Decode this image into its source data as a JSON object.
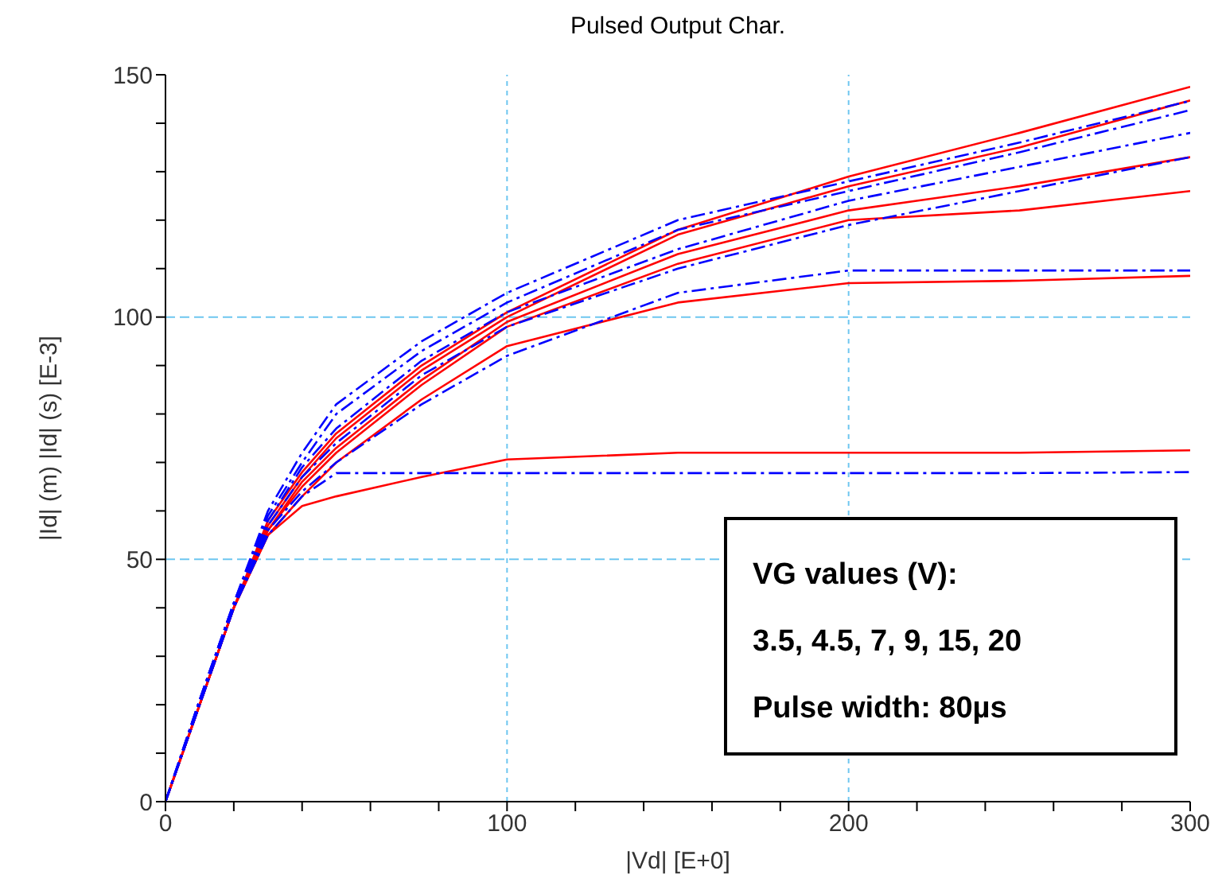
{
  "chart_data": {
    "type": "line",
    "title": "Pulsed Output Char.",
    "xlabel": "|Vd|  [E+0]",
    "ylabel": "|Id| (m)  |Id| (s)  [E-3]",
    "x": [
      0,
      10,
      20,
      30,
      40,
      50,
      75,
      100,
      150,
      200,
      250,
      300
    ],
    "series": [
      {
        "color": "#ff0000",
        "line_style": "solid",
        "values": [
          0,
          20,
          40,
          58,
          68,
          76,
          90,
          101,
          118,
          129,
          138,
          147.5
        ]
      },
      {
        "color": "#ff0000",
        "line_style": "solid",
        "values": [
          0,
          20,
          40,
          57,
          67,
          75,
          89,
          100,
          117,
          127,
          135,
          144.7
        ]
      },
      {
        "color": "#ff0000",
        "line_style": "solid",
        "values": [
          0,
          20,
          40,
          56,
          66,
          73,
          87,
          99,
          113,
          122,
          127,
          133
        ]
      },
      {
        "color": "#ff0000",
        "line_style": "solid",
        "values": [
          0,
          20,
          40,
          56,
          65,
          72,
          86,
          98,
          111,
          120,
          122,
          126
        ]
      },
      {
        "color": "#ff0000",
        "line_style": "solid",
        "values": [
          0,
          20,
          40,
          55,
          63,
          70,
          83,
          94,
          103,
          107,
          107.5,
          108.5
        ]
      },
      {
        "color": "#ff0000",
        "line_style": "solid",
        "values": [
          0,
          20,
          40,
          55,
          61,
          63,
          67,
          70.6,
          72,
          72,
          72,
          72.5
        ]
      },
      {
        "color": "#0000ff",
        "line_style": "dashed",
        "values": [
          0,
          21,
          41,
          60,
          72,
          82,
          95,
          105,
          120,
          128,
          136,
          144.6
        ]
      },
      {
        "color": "#0000ff",
        "line_style": "dashed",
        "values": [
          0,
          21,
          41,
          59,
          70,
          80,
          93,
          103,
          118,
          126,
          134,
          142.7
        ]
      },
      {
        "color": "#0000ff",
        "line_style": "dashed",
        "values": [
          0,
          21,
          41,
          58,
          69,
          77,
          91,
          101,
          114,
          124,
          131,
          138
        ]
      },
      {
        "color": "#0000ff",
        "line_style": "dashed",
        "values": [
          0,
          20,
          40,
          57,
          67,
          74,
          88,
          98,
          110,
          119,
          126,
          133
        ]
      },
      {
        "color": "#0000ff",
        "line_style": "dashed",
        "values": [
          0,
          20,
          40,
          56,
          64,
          70,
          82,
          92,
          105,
          109.6,
          109.6,
          109.6
        ]
      },
      {
        "color": "#0000ff",
        "line_style": "dashed",
        "values": [
          0,
          20,
          40,
          55,
          63,
          67.8,
          67.8,
          67.8,
          67.8,
          67.8,
          67.8,
          68
        ]
      }
    ],
    "xlim": [
      0,
      300
    ],
    "xticks": [
      0,
      {
        "value": 20,
        "label": null
      },
      {
        "value": 40,
        "label": null
      },
      {
        "value": 60,
        "label": null
      },
      {
        "value": 80,
        "label": null
      },
      100,
      {
        "value": 120,
        "label": null
      },
      {
        "value": 140,
        "label": null
      },
      {
        "value": 160,
        "label": null
      },
      {
        "value": 180,
        "label": null
      },
      200,
      {
        "value": 220,
        "label": null
      },
      {
        "value": 240,
        "label": null
      },
      {
        "value": 260,
        "label": null
      },
      {
        "value": 280,
        "label": null
      },
      300
    ],
    "ylim": [
      0,
      150
    ],
    "yticks": [
      0,
      {
        "value": 10,
        "label": null
      },
      {
        "value": 20,
        "label": null
      },
      {
        "value": 30,
        "label": null
      },
      {
        "value": 40,
        "label": null
      },
      50,
      {
        "value": 60,
        "label": null
      },
      {
        "value": 70,
        "label": null
      },
      {
        "value": 80,
        "label": null
      },
      {
        "value": 90,
        "label": null
      },
      100,
      {
        "value": 110,
        "label": null
      },
      {
        "value": 120,
        "label": null
      },
      {
        "value": 130,
        "label": null
      },
      {
        "value": 140,
        "label": null
      },
      150
    ],
    "grid": true,
    "marker": "none",
    "annotations": [
      "VG values (V):",
      "3.5, 4.5, 7, 9, 15, 20",
      "Pulse width: 80µs"
    ]
  }
}
